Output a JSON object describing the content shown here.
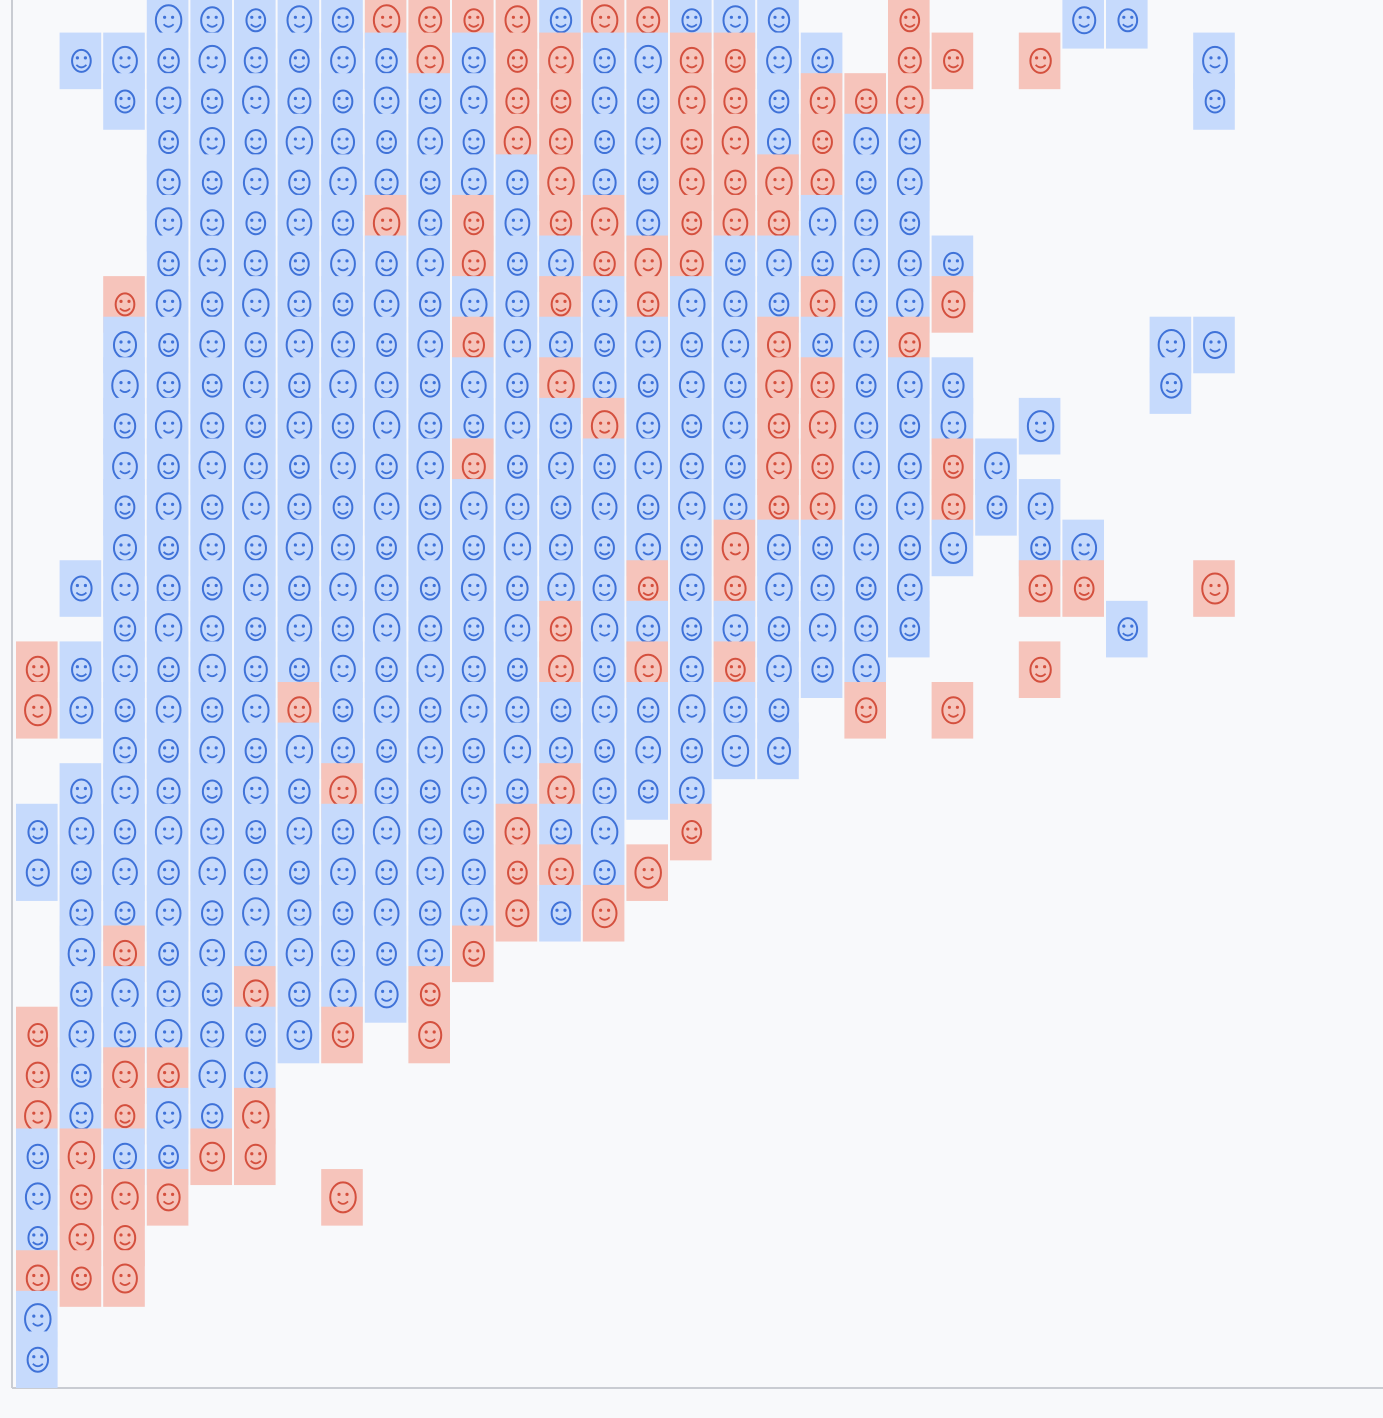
{
  "tile_colors": {
    "b": "#c6dafc",
    "r": "#f6c4bb"
  },
  "doodle_colors": {
    "b": "#3f72d8",
    "r": "#d4503e"
  }
}
